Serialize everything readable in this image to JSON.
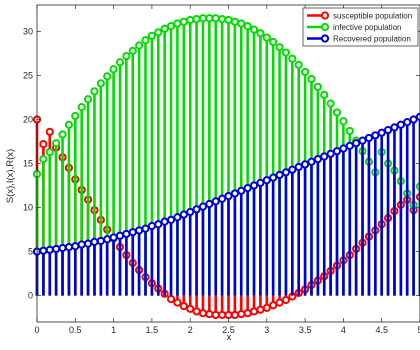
{
  "chart_data": {
    "type": "stem",
    "title": "",
    "xlabel": "x",
    "ylabel": "S(x),I(x),R(x)",
    "xlim": [
      0,
      5
    ],
    "ylim": [
      -3,
      33
    ],
    "xticks": [
      "0",
      "0.5",
      "1",
      "1.5",
      "2",
      "2.5",
      "3",
      "3.5",
      "4",
      "4.5",
      "5"
    ],
    "yticks": [
      "0",
      "5",
      "10",
      "15",
      "20",
      "25",
      "30"
    ],
    "grid": false,
    "legend_position": "top-right",
    "baseline": 0,
    "sample_spacing": 0.08333,
    "x_start": 0,
    "n_samples": 61,
    "series": [
      {
        "name": "susceptible population",
        "color": "#ff0000",
        "marker": "open-circle",
        "values": [
          20.0,
          17.2,
          18.6,
          16.8,
          15.7,
          14.5,
          13.2,
          12.0,
          10.9,
          9.7,
          8.6,
          7.5,
          6.5,
          5.5,
          4.6,
          3.7,
          2.9,
          2.1,
          1.4,
          0.8,
          0.2,
          -0.4,
          -0.8,
          -1.2,
          -1.5,
          -1.8,
          -2.0,
          -2.1,
          -2.2,
          -2.2,
          -2.2,
          -2.2,
          -2.1,
          -2.0,
          -1.8,
          -1.6,
          -1.4,
          -1.1,
          -0.8,
          -0.5,
          -0.1,
          0.3,
          0.7,
          1.2,
          1.7,
          2.2,
          2.8,
          3.4,
          4.0,
          4.6,
          5.3,
          6.0,
          6.7,
          7.4,
          8.1,
          8.8,
          9.6,
          10.3,
          10.9,
          9.7,
          11.2
        ]
      },
      {
        "name": "infective population",
        "color": "#00dd00",
        "marker": "open-circle",
        "values": [
          13.8,
          15.5,
          16.3,
          17.3,
          18.3,
          19.4,
          20.4,
          21.4,
          22.3,
          23.2,
          24.1,
          24.9,
          25.7,
          26.5,
          27.2,
          27.8,
          28.4,
          29.0,
          29.5,
          29.9,
          30.3,
          30.6,
          30.9,
          31.1,
          31.3,
          31.4,
          31.5,
          31.5,
          31.5,
          31.4,
          31.3,
          31.1,
          30.9,
          30.6,
          30.2,
          29.8,
          29.3,
          28.8,
          28.2,
          27.6,
          26.9,
          26.2,
          25.4,
          24.6,
          23.7,
          22.8,
          21.8,
          20.8,
          19.8,
          18.7,
          17.6,
          16.4,
          15.2,
          14.0,
          16.3,
          15.0,
          14.2,
          13.0,
          11.6,
          10.3,
          12.4
        ]
      },
      {
        "name": "Recovered population",
        "color": "#0000dd",
        "marker": "open-circle",
        "values": [
          5.0,
          5.1,
          5.2,
          5.3,
          5.4,
          5.5,
          5.6,
          5.8,
          5.9,
          6.1,
          6.2,
          6.4,
          6.6,
          6.8,
          7.0,
          7.2,
          7.4,
          7.6,
          7.9,
          8.1,
          8.4,
          8.6,
          8.9,
          9.2,
          9.5,
          9.8,
          10.1,
          10.4,
          10.7,
          11.0,
          11.3,
          11.6,
          11.9,
          12.2,
          12.5,
          12.8,
          13.1,
          13.4,
          13.7,
          14.0,
          14.3,
          14.6,
          14.9,
          15.2,
          15.5,
          15.8,
          16.1,
          16.4,
          16.7,
          17.0,
          17.3,
          17.6,
          17.9,
          18.2,
          18.5,
          18.8,
          19.1,
          19.4,
          19.7,
          20.0,
          20.3
        ]
      }
    ]
  }
}
